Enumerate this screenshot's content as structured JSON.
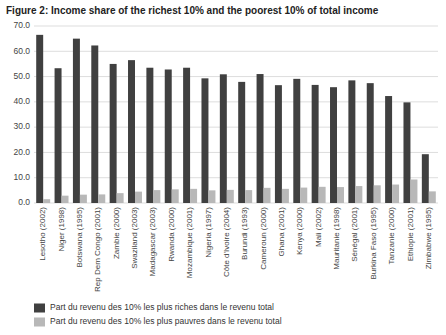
{
  "chart_data": {
    "type": "bar",
    "title": "Figure 2: Income share of the richest 10% and the poorest 10% of total income",
    "categories": [
      "Lesotho (2002)",
      "Niger (1998)",
      "Botswana (1995)",
      "Rep Dem Congo (2001)",
      "Zambie (2000)",
      "Swaziland (2003)",
      "Madagascar (2003)",
      "Rwanda (2000)",
      "Mozambique (2001)",
      "Nigeria (1997)",
      "Côte d'Ivoire (2004)",
      "Burundi (1993)",
      "Cameroun (2000)",
      "Ghana (2001)",
      "Kenya (2000)",
      "Mali (2002)",
      "Mauritanie (1998)",
      "Sénégal (2001)",
      "Burkina Faso (1995)",
      "Tanzanie (2000)",
      "Ethiopie (2001)",
      "Zimbabwe (1995)"
    ],
    "series": [
      {
        "name": "Part du revenu des 10% les plus riches dans le revenu total",
        "color": "#404040",
        "values": [
          66.5,
          53.3,
          65.0,
          62.3,
          55.0,
          56.5,
          53.5,
          52.8,
          53.5,
          49.3,
          50.9,
          47.9,
          51.0,
          46.6,
          49.1,
          46.7,
          45.8,
          48.5,
          47.4,
          42.3,
          39.8,
          19.3
        ]
      },
      {
        "name": "Part du revenu des 10% les plus pauvres dans le revenu total",
        "color": "#b8b8b8",
        "values": [
          1.5,
          2.9,
          3.3,
          3.4,
          3.9,
          4.5,
          5.1,
          5.4,
          5.6,
          5.0,
          5.2,
          5.1,
          6.0,
          5.6,
          6.1,
          6.4,
          6.3,
          6.7,
          7.0,
          7.3,
          9.3,
          4.6
        ]
      }
    ],
    "ylim": [
      0,
      70
    ],
    "yticks": [
      {
        "value": 0,
        "label": "0.0"
      },
      {
        "value": 10,
        "label": "10.0"
      },
      {
        "value": 20,
        "label": "20.0"
      },
      {
        "value": 30,
        "label": "30.0"
      },
      {
        "value": 40,
        "label": "40.0"
      },
      {
        "value": 50,
        "label": "50.0"
      },
      {
        "value": 60,
        "label": "60.0"
      },
      {
        "value": 70,
        "label": "70.0"
      }
    ],
    "grid": true,
    "legend": "bottom"
  }
}
